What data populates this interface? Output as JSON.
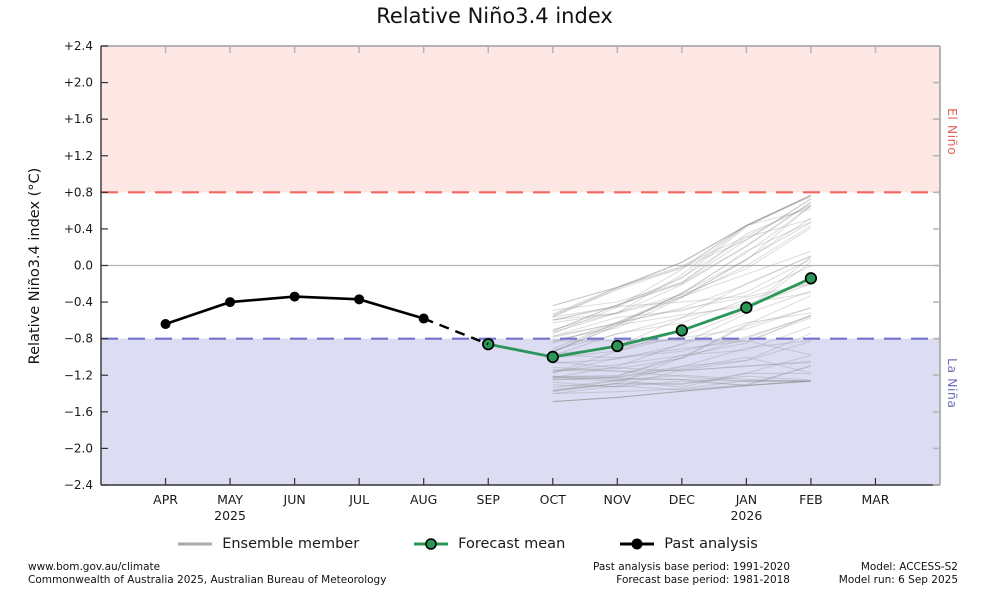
{
  "colors": {
    "el_nino_fill": "#fce7e4",
    "la_nina_fill": "#dcdcf2",
    "el_nino_line": "#f4655f",
    "la_nina_line": "#7474cd",
    "el_nino_text": "#e4635c",
    "la_nina_text": "#6e6ebc",
    "forecast_green": "#2a9758",
    "ensemble_gray": "#8c8c8c",
    "zero_line": "#b5b5b5",
    "past_black": "#000000",
    "frame_dark": "#333333",
    "frame_gray": "#b3b3b3"
  },
  "chart_data": {
    "type": "line",
    "title": "Relative Niño3.4 index",
    "ylabel": "Relative Niño3.4 index (°C)",
    "ylim": [
      -2.4,
      2.4
    ],
    "grid": "zero-line-only",
    "legend_position": "bottom",
    "y_ticks": [
      {
        "v": 2.4,
        "label": "+2.4"
      },
      {
        "v": 2.0,
        "label": "+2.0"
      },
      {
        "v": 1.6,
        "label": "+1.6"
      },
      {
        "v": 1.2,
        "label": "+1.2"
      },
      {
        "v": 0.8,
        "label": "+0.8"
      },
      {
        "v": 0.4,
        "label": "+0.4"
      },
      {
        "v": 0.0,
        "label": "0.0"
      },
      {
        "v": -0.4,
        "label": "−0.4"
      },
      {
        "v": -0.8,
        "label": "−0.8"
      },
      {
        "v": -1.2,
        "label": "−1.2"
      },
      {
        "v": -1.6,
        "label": "−1.6"
      },
      {
        "v": -2.0,
        "label": "−2.0"
      },
      {
        "v": -2.4,
        "label": "−2.4"
      }
    ],
    "x_categories": [
      "APR",
      "MAY",
      "JUN",
      "JUL",
      "AUG",
      "SEP",
      "OCT",
      "NOV",
      "DEC",
      "JAN",
      "FEB",
      "MAR"
    ],
    "x_year_labels": [
      {
        "index": 1,
        "label": "2025"
      },
      {
        "index": 9,
        "label": "2026"
      }
    ],
    "thresholds": [
      {
        "name": "el-nino",
        "value": 0.8,
        "label": "El Niño"
      },
      {
        "name": "la-nina",
        "value": -0.8,
        "label": "La Niña"
      }
    ],
    "series": [
      {
        "name": "Past analysis",
        "style": "solid-marker",
        "start_index": 0,
        "x": [
          "APR",
          "MAY",
          "JUN",
          "JUL",
          "AUG"
        ],
        "values": [
          -0.64,
          -0.4,
          -0.34,
          -0.37,
          -0.58
        ]
      },
      {
        "name": "Forecast mean",
        "style": "solid-marker",
        "start_index": 5,
        "x": [
          "SEP",
          "OCT",
          "NOV",
          "DEC",
          "JAN",
          "FEB"
        ],
        "values": [
          -0.86,
          -1.0,
          -0.88,
          -0.71,
          -0.46,
          -0.14
        ]
      },
      {
        "name": "Analysis-to-forecast connector",
        "style": "dashed",
        "from": {
          "index": 4,
          "value": -0.58
        },
        "to": {
          "index": 5,
          "value": -0.86
        }
      }
    ],
    "ensemble": {
      "name": "Ensemble member",
      "start_index": 6,
      "months": [
        "OCT",
        "NOV",
        "DEC",
        "JAN",
        "FEB"
      ],
      "member_count": 62,
      "mean": [
        -1.0,
        -0.88,
        -0.71,
        -0.46,
        -0.14
      ],
      "upper_bound": [
        -0.45,
        -0.25,
        0.02,
        0.42,
        0.75
      ],
      "lower_bound": [
        -1.47,
        -1.42,
        -1.35,
        -1.28,
        -1.22
      ]
    }
  },
  "legend": {
    "items": [
      {
        "id": "ensemble-member",
        "label": "Ensemble member"
      },
      {
        "id": "forecast-mean",
        "label": "Forecast mean"
      },
      {
        "id": "past-analysis",
        "label": "Past analysis"
      }
    ]
  },
  "footer": {
    "left": [
      "www.bom.gov.au/climate",
      "Commonwealth of Australia 2025, Australian Bureau of Meteorology"
    ],
    "center": [
      "Past analysis base period: 1991-2020",
      "Forecast base period: 1981-2018"
    ],
    "right": [
      "Model: ACCESS-S2",
      "Model run: 6 Sep 2025"
    ]
  }
}
